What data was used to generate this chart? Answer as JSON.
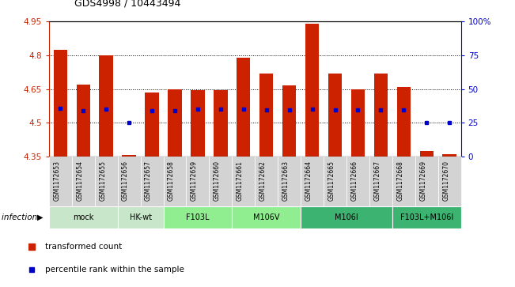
{
  "title": "GDS4998 / 10443494",
  "samples": [
    "GSM1172653",
    "GSM1172654",
    "GSM1172655",
    "GSM1172656",
    "GSM1172657",
    "GSM1172658",
    "GSM1172659",
    "GSM1172660",
    "GSM1172661",
    "GSM1172662",
    "GSM1172663",
    "GSM1172664",
    "GSM1172665",
    "GSM1172666",
    "GSM1172667",
    "GSM1172668",
    "GSM1172669",
    "GSM1172670"
  ],
  "bar_values": [
    4.825,
    4.67,
    4.8,
    4.355,
    4.635,
    4.65,
    4.645,
    4.645,
    4.79,
    4.72,
    4.665,
    4.94,
    4.72,
    4.65,
    4.72,
    4.66,
    4.375,
    4.36
  ],
  "percentile_values": [
    4.565,
    4.555,
    4.56,
    4.5,
    4.555,
    4.555,
    4.56,
    4.56,
    4.56,
    4.558,
    4.557,
    4.56,
    4.557,
    4.558,
    4.558,
    4.558,
    4.5,
    4.5
  ],
  "ymin": 4.35,
  "ymax": 4.95,
  "yticks": [
    4.35,
    4.5,
    4.65,
    4.8,
    4.95
  ],
  "ytick_labels": [
    "4.35",
    "4.5",
    "4.65",
    "4.8",
    "4.95"
  ],
  "right_yticks": [
    0,
    25,
    50,
    75,
    100
  ],
  "right_ytick_labels": [
    "0",
    "25",
    "50",
    "75",
    "100%"
  ],
  "groups": [
    {
      "label": "mock",
      "start": 0,
      "end": 3,
      "color": "#c8e6c9"
    },
    {
      "label": "HK-wt",
      "start": 3,
      "end": 5,
      "color": "#c8e6c9"
    },
    {
      "label": "F103L",
      "start": 5,
      "end": 8,
      "color": "#90ee90"
    },
    {
      "label": "M106V",
      "start": 8,
      "end": 11,
      "color": "#90ee90"
    },
    {
      "label": "M106I",
      "start": 11,
      "end": 15,
      "color": "#3cb371"
    },
    {
      "label": "F103L+M106I",
      "start": 15,
      "end": 18,
      "color": "#3cb371"
    }
  ],
  "bar_color": "#cc2200",
  "percentile_color": "#0000cc",
  "bar_width": 0.6,
  "background_color": "#ffffff",
  "right_axis_color": "#0000cc",
  "infection_label": "infection",
  "legend_items": [
    {
      "label": "transformed count",
      "color": "#cc2200"
    },
    {
      "label": "percentile rank within the sample",
      "color": "#0000cc"
    }
  ]
}
